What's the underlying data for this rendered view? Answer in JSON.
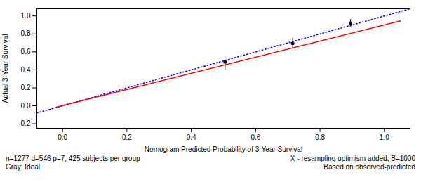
{
  "chart_data": {
    "type": "line",
    "xlabel": "Nomogram Predicted Probability of 3-Year Survival",
    "ylabel": "Actual 3-Year Survival",
    "xlim": [
      -0.08,
      1.08
    ],
    "ylim": [
      -0.25,
      1.08
    ],
    "xticks": [
      {
        "value": 0.0,
        "label": "0.0"
      },
      0.2,
      0.4,
      0.6,
      0.8,
      {
        "value": 1.0,
        "label": "1.0"
      }
    ],
    "yticks": [
      -0.2,
      {
        "value": 0.0,
        "label": "0.0"
      },
      0.2,
      0.4,
      0.6,
      0.8,
      {
        "value": 1.0,
        "label": "1.0"
      }
    ],
    "grid": false,
    "series": [
      {
        "type": "line",
        "x": [
          -0.08,
          1.08
        ],
        "values": [
          -0.08,
          1.08
        ],
        "color": "blue",
        "line_style": "dotted"
      },
      {
        "type": "line",
        "x": [
          -0.02,
          1.05
        ],
        "values": [
          -0.015,
          0.945
        ],
        "color": "red",
        "line_style": "solid"
      },
      {
        "type": "scatter",
        "x": [
          0.505,
          0.715,
          0.895
        ],
        "values": [
          0.487,
          0.695,
          0.92
        ],
        "yerr_low": [
          0.087,
          0.06,
          0.042
        ],
        "yerr_high": [
          0.028,
          0.06,
          0.042
        ],
        "color": "black",
        "marker": "circle"
      }
    ],
    "annotations": [
      "n=1277 d=546 p=7, 425 subjects per group\nGray: Ideal",
      "X - resampling optimism added, B=1000\nBased on observed-predicted"
    ]
  }
}
